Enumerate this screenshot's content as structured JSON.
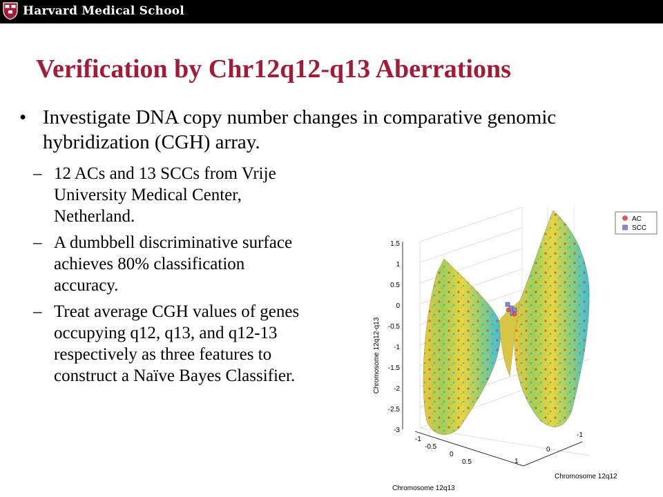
{
  "header": {
    "brand": "Harvard Medical School",
    "logo_icon": "veritas-shield-icon"
  },
  "title": "Verification by Chr12q12-q13 Aberrations",
  "bullet": "Investigate DNA copy number changes in comparative genomic hybridization (CGH) array.",
  "subbullets": [
    "12 ACs and 13 SCCs from Vrije University Medical Center, Netherland.",
    "A dumbbell discriminative surface achieves 80% classification accuracy.",
    "Treat average CGH values of genes occupying q12, q13, and q12-13 respectively as three features to construct a Naïve Bayes Classifier."
  ],
  "figure": {
    "zlabel": "Chromosome 12q12-q13",
    "xlabel": "Chromosome 12q13",
    "ylabel": "Chromosome 12q12",
    "z_ticks": [
      "1.5",
      "1",
      "0.5",
      "0",
      "-0.5",
      "-1",
      "-1.5",
      "-2",
      "-2.5",
      "-3"
    ],
    "x_ticks": [
      "-1",
      "-0.5",
      "0",
      "0.5",
      "1"
    ],
    "y_ticks": [
      "-1",
      "0",
      "1"
    ],
    "legend": [
      {
        "label": "AC",
        "color": "#e05a57"
      },
      {
        "label": "SCC",
        "color": "#8a8ad0"
      }
    ]
  },
  "colors": {
    "title": "#a31c37",
    "topbar": "#000000"
  }
}
